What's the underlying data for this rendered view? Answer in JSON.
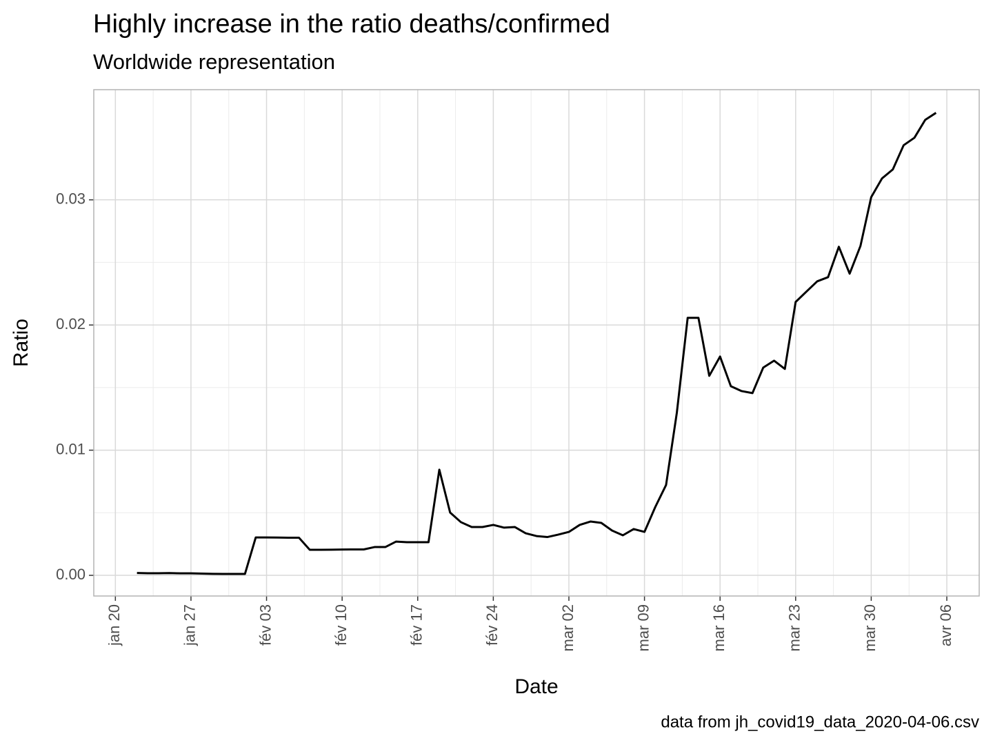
{
  "chart_data": {
    "type": "line",
    "title": "Highly increase in the ratio deaths/confirmed",
    "subtitle": "Worldwide representation",
    "x_label": "Date",
    "y_label": "Ratio",
    "caption": "data from jh_covid19_data_2020-04-06.csv",
    "x": [
      "jan 22",
      "jan 23",
      "jan 24",
      "jan 25",
      "jan 26",
      "jan 27",
      "jan 28",
      "jan 29",
      "jan 30",
      "jan 31",
      "fév 01",
      "fév 02",
      "fév 03",
      "fév 04",
      "fév 05",
      "fév 06",
      "fév 07",
      "fév 08",
      "fév 09",
      "fév 10",
      "fév 11",
      "fév 12",
      "fév 13",
      "fév 14",
      "fév 15",
      "fév 16",
      "fév 17",
      "fév 18",
      "fév 19",
      "fév 20",
      "fév 21",
      "fév 22",
      "fév 23",
      "fév 24",
      "fév 25",
      "fév 26",
      "fév 27",
      "fév 28",
      "fév 29",
      "mar 01",
      "mar 02",
      "mar 03",
      "mar 04",
      "mar 05",
      "mar 06",
      "mar 07",
      "mar 08",
      "mar 09",
      "mar 10",
      "mar 11",
      "mar 12",
      "mar 13",
      "mar 14",
      "mar 15",
      "mar 16",
      "mar 17",
      "mar 18",
      "mar 19",
      "mar 20",
      "mar 21",
      "mar 22",
      "mar 23",
      "mar 24",
      "mar 25",
      "mar 26",
      "mar 27",
      "mar 28",
      "mar 29",
      "mar 30",
      "mar 31",
      "avr 01",
      "avr 02",
      "avr 03",
      "avr 04",
      "avr 05"
    ],
    "values": [
      0.00019,
      0.00017,
      0.00017,
      0.00018,
      0.00016,
      0.00016,
      0.00014,
      0.00012,
      0.00011,
      0.00011,
      0.00011,
      0.00303,
      0.00303,
      0.00302,
      0.00301,
      0.00301,
      0.00204,
      0.00204,
      0.00205,
      0.00206,
      0.00207,
      0.00207,
      0.00226,
      0.00226,
      0.0027,
      0.00265,
      0.00265,
      0.00265,
      0.00844,
      0.00502,
      0.00425,
      0.00386,
      0.00386,
      0.00403,
      0.00381,
      0.00386,
      0.00336,
      0.00314,
      0.00306,
      0.00325,
      0.00347,
      0.00403,
      0.0043,
      0.00419,
      0.00358,
      0.0032,
      0.0037,
      0.00347,
      0.00546,
      0.00722,
      0.01301,
      0.02057,
      0.02057,
      0.01594,
      0.01748,
      0.01511,
      0.01472,
      0.01456,
      0.0166,
      0.01715,
      0.01649,
      0.02184,
      0.02267,
      0.02349,
      0.02382,
      0.02625,
      0.0241,
      0.02631,
      0.03022,
      0.03171,
      0.03243,
      0.03436,
      0.03496,
      0.03639,
      0.03695
    ],
    "color": "#000000",
    "xlim": [
      "jan 18",
      "avr 09"
    ],
    "xticks": [
      "jan 20",
      "jan 27",
      "fév 03",
      "fév 10",
      "fév 17",
      "fév 24",
      "mar 02",
      "mar 09",
      "mar 16",
      "mar 23",
      "mar 30",
      "avr 06"
    ],
    "ylim": [
      -0.00165,
      0.0388
    ],
    "yticks": [
      {
        "value": 0,
        "label": "0.00"
      },
      {
        "value": 0.01,
        "label": "0.01"
      },
      {
        "value": 0.02,
        "label": "0.02"
      },
      {
        "value": 0.03,
        "label": "0.03"
      }
    ],
    "grid": true
  }
}
